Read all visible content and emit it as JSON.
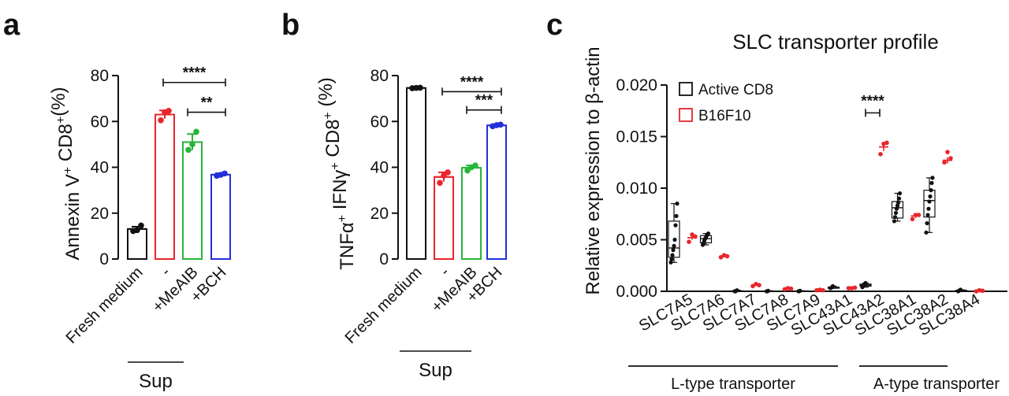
{
  "panels": {
    "a": {
      "letter": "a"
    },
    "b": {
      "letter": "b"
    },
    "c": {
      "letter": "c"
    }
  },
  "chart_data": [
    {
      "panel": "a",
      "type": "bar",
      "ylabel": "Annexin V+ CD8+(%)",
      "ylabel_parts": {
        "base1": "Annexin V",
        "sup1": "+",
        "base2": " CD8",
        "sup2": "+",
        "tail": "(%)"
      },
      "categories": [
        "Fresh medium",
        "-",
        "+MeAIB",
        "+BCH"
      ],
      "group_label": "Sup",
      "ylim": [
        0,
        80
      ],
      "yticks": [
        0,
        20,
        40,
        60,
        80
      ],
      "colors": [
        "#111111",
        "#e8262b",
        "#27b53a",
        "#2330d8"
      ],
      "values": [
        13.1,
        63.0,
        51.0,
        36.8
      ],
      "sem": [
        1.0,
        1.8,
        3.5,
        0.6
      ],
      "points": [
        [
          12.2,
          14.6,
          12.6
        ],
        [
          60.5,
          64.6,
          64.0
        ],
        [
          47.6,
          55.5,
          50.0
        ],
        [
          36.3,
          37.3,
          36.7
        ]
      ],
      "significance": [
        {
          "from": 1,
          "to": 3,
          "label": "****",
          "y": 77
        },
        {
          "from": 2,
          "to": 3,
          "label": "**",
          "y": 64
        }
      ]
    },
    {
      "panel": "b",
      "type": "bar",
      "ylabel": "TNFα+ IFNγ+ CD8+ (%)",
      "ylabel_parts": {
        "base1": "TNFα",
        "sup1": "+",
        "base2": " IFNγ",
        "sup2": "+",
        "base3": " CD8",
        "sup3": "+",
        "tail": " (%)"
      },
      "categories": [
        "Fresh medium",
        "-",
        "+MeAIB",
        "+BCH"
      ],
      "group_label": "Sup",
      "ylim": [
        0,
        80
      ],
      "yticks": [
        0,
        20,
        40,
        60,
        80
      ],
      "colors": [
        "#111111",
        "#e8262b",
        "#27b53a",
        "#2330d8"
      ],
      "values": [
        74.6,
        35.8,
        39.8,
        58.3
      ],
      "sem": [
        0.3,
        2.0,
        1.0,
        0.5
      ],
      "points": [
        [
          74.5,
          74.7,
          74.6
        ],
        [
          33.2,
          37.8,
          36.4
        ],
        [
          38.6,
          40.8,
          40.0
        ],
        [
          57.9,
          58.6,
          58.4
        ]
      ],
      "significance": [
        {
          "from": 1,
          "to": 3,
          "label": "****",
          "y": 73
        },
        {
          "from": 2,
          "to": 3,
          "label": "***",
          "y": 65
        }
      ]
    },
    {
      "panel": "c",
      "type": "box",
      "title": "SLC transporter profile",
      "ylabel": "Relative expression to β-actin",
      "ylim": [
        0,
        0.02
      ],
      "yticks": [
        "0.000",
        "0.005",
        "0.010",
        "0.015",
        "0.020"
      ],
      "categories": [
        "SLC7A5",
        "SLC7A6",
        "SLC7A7",
        "SLC7A8",
        "SLC7A9",
        "SLC43A1",
        "SLC43A2",
        "SLC38A1",
        "SLC38A2",
        "SLC38A4"
      ],
      "legend": [
        {
          "name": "Active CD8",
          "color": "#111111"
        },
        {
          "name": "B16F10",
          "color": "#e8262b"
        }
      ],
      "series": [
        {
          "name": "Active CD8",
          "color": "#111111",
          "boxes": [
            {
              "min": 0.0028,
              "q1": 0.0033,
              "median": 0.0042,
              "q3": 0.0068,
              "max": 0.0085,
              "points": [
                0.0028,
                0.0031,
                0.0035,
                0.004,
                0.0044,
                0.005,
                0.0064,
                0.0073,
                0.0085
              ]
            },
            {
              "min": 0.0045,
              "q1": 0.0047,
              "median": 0.0051,
              "q3": 0.0054,
              "max": 0.0056,
              "points": [
                0.0045,
                0.0047,
                0.0049,
                0.0051,
                0.0052,
                0.0054,
                0.0055,
                0.0056
              ]
            },
            {
              "min": 0.0,
              "q1": 0.0,
              "median": 0.0,
              "q3": 5e-05,
              "max": 0.0001,
              "points": [
                0.0,
                0.0,
                5e-05,
                0.0001
              ]
            },
            {
              "min": 0.0,
              "q1": 0.0,
              "median": 0.0,
              "q3": 3e-05,
              "max": 5e-05,
              "points": [
                0.0,
                0.0,
                5e-05
              ]
            },
            {
              "min": 0.0,
              "q1": 0.0,
              "median": 2e-05,
              "q3": 4e-05,
              "max": 5e-05,
              "points": [
                0.0,
                2e-05,
                5e-05
              ]
            },
            {
              "min": 0.0003,
              "q1": 0.0003,
              "median": 0.00035,
              "q3": 0.0004,
              "max": 0.0005,
              "points": [
                0.0003,
                0.00035,
                0.0004,
                0.0005
              ]
            },
            {
              "min": 0.0004,
              "q1": 0.0005,
              "median": 0.0006,
              "q3": 0.0007,
              "max": 0.0008,
              "points": [
                0.0004,
                0.0005,
                0.0006,
                0.0007,
                0.0008
              ]
            },
            {
              "min": 0.0068,
              "q1": 0.0071,
              "median": 0.0081,
              "q3": 0.0087,
              "max": 0.0095,
              "points": [
                0.0068,
                0.0072,
                0.0076,
                0.008,
                0.0083,
                0.0086,
                0.009,
                0.0095
              ]
            },
            {
              "min": 0.0057,
              "q1": 0.0072,
              "median": 0.0088,
              "q3": 0.0098,
              "max": 0.011,
              "points": [
                0.0057,
                0.0066,
                0.0074,
                0.008,
                0.0087,
                0.0092,
                0.0098,
                0.0105,
                0.011
              ]
            },
            {
              "min": 0.0,
              "q1": 0.0,
              "median": 5e-05,
              "q3": 0.0001,
              "max": 0.00015,
              "points": [
                0.0,
                5e-05,
                0.0001,
                0.00015
              ]
            }
          ]
        },
        {
          "name": "B16F10",
          "color": "#e8262b",
          "means": [
            0.0052,
            0.0034,
            0.0006,
            0.0002,
            0.0001,
            0.0003,
            0.014,
            0.0073,
            0.0127,
            5e-05
          ],
          "sem": [
            0.0002,
            0.0001,
            5e-05,
            3e-05,
            2e-05,
            2e-05,
            0.0004,
            0.0002,
            0.0003,
            2e-05
          ],
          "points": [
            [
              0.0048,
              0.0053,
              0.0055
            ],
            [
              0.0033,
              0.0034,
              0.0035
            ],
            [
              0.0005,
              0.0006,
              0.0007
            ],
            [
              0.0002,
              0.00025,
              0.0003
            ],
            [
              0.0001,
              0.0001,
              0.00015
            ],
            [
              0.0003,
              0.00035,
              0.0003
            ],
            [
              0.0133,
              0.0144,
              0.0143
            ],
            [
              0.007,
              0.0074,
              0.0074
            ],
            [
              0.0125,
              0.0129,
              0.0135
            ],
            [
              0.0,
              5e-05,
              0.0001
            ]
          ]
        }
      ],
      "significance": [
        {
          "index": 6,
          "label": "****"
        }
      ],
      "group_labels": [
        {
          "label": "L-type transporter",
          "from": 0,
          "to": 5
        },
        {
          "label": "A-type transporter",
          "from": 6,
          "to": 8
        }
      ]
    }
  ]
}
